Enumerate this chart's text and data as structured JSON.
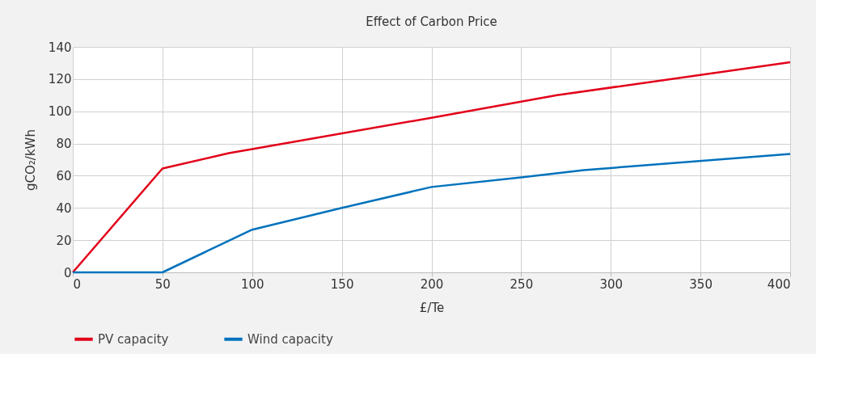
{
  "chart_data": {
    "type": "line",
    "title": "Effect of Carbon Price",
    "xlabel": "£/Te",
    "ylabel": "gCO₂/kWh",
    "xlim": [
      0,
      400
    ],
    "xticks": [
      0,
      50,
      100,
      150,
      200,
      250,
      300,
      350,
      400
    ],
    "ylim": [
      0,
      140
    ],
    "yticks": [
      0,
      20,
      40,
      60,
      80,
      100,
      120,
      140
    ],
    "grid": true,
    "legend": "bottom",
    "marker": "none",
    "line_style": "solid",
    "series": [
      {
        "name": "PV capacity",
        "color": "#e2001a",
        "x": [
          0,
          50,
          87,
          100,
          200,
          270,
          400
        ],
        "values": [
          0,
          64.5,
          74,
          76.5,
          96,
          110,
          130.5
        ]
      },
      {
        "name": "Wind capacity",
        "color": "#0072bc",
        "x": [
          0,
          50,
          100,
          150,
          200,
          250,
          285,
          400
        ],
        "values": [
          0,
          0,
          26.5,
          40,
          53,
          59,
          63.5,
          73.5
        ]
      }
    ]
  }
}
